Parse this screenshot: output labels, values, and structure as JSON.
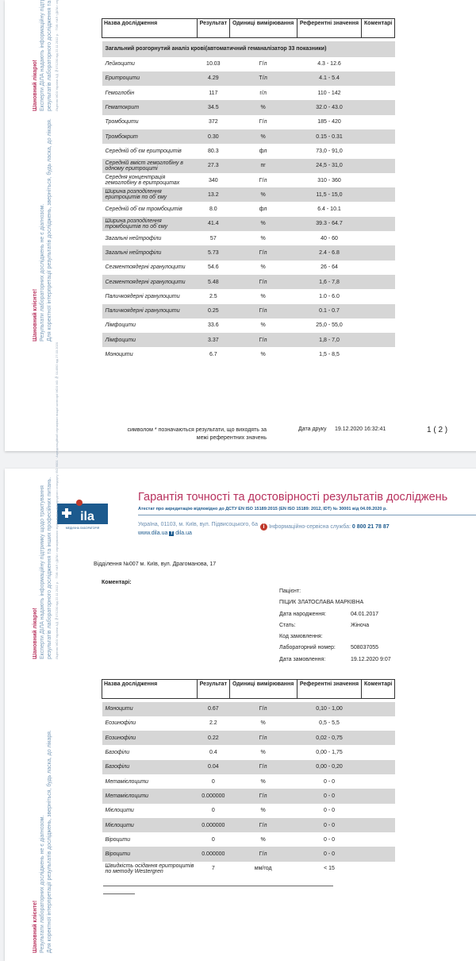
{
  "sidebar": {
    "patient_title": "Шановний клієнте!",
    "patient_l1": "Результати лабораторних досліджень не є діагнозом.",
    "patient_l2": "Для коректної інтерпретації результатів досліджень, зверніться, будь ласка, до лікаря.",
    "doctor_title": "Шановний лікарю!",
    "doctor_l1": "Експерти ДІЛА надають інформаційну підтримку щодо трактування",
    "doctor_l2": "результатів лабораторного дослідження та інших професійних питань.",
    "license": "Ліцензія МОЗ України АД №071230 від 22.11.2012 р. · ТОВ «МЛ «ДІЛА» сертифіковано згідно вимог міжнародного стандарту ISO 9001 · Акредитаційний сертифікат вищої категорії МОЗ МЗ № 014592 від 27.03.2020"
  },
  "table_headers": [
    "Назва дослідження",
    "Результат",
    "Одиниці вимірювання",
    "Референтні значення",
    "Коментарі"
  ],
  "page1": {
    "section": "Загальний розгорнутий аналіз крові(автоматичний геманалізатор 33 показники)",
    "rows": [
      [
        "Лейкоцити",
        "10.03",
        "Г/л",
        "4.3 - 12.6"
      ],
      [
        "Еритроцити",
        "4.29",
        "Т/л",
        "4.1 - 5.4"
      ],
      [
        "Гемоглобін",
        "117",
        "г/л",
        "110 - 142"
      ],
      [
        "Гематокрит",
        "34.5",
        "%",
        "32.0 - 43.0"
      ],
      [
        "Тромбоцити",
        "372",
        "Г/л",
        "185 - 420"
      ],
      [
        "Тромбокрит",
        "0.30",
        "%",
        "0.15 - 0.31"
      ],
      [
        "Середній об`єм еритроцитів",
        "80.3",
        "фл",
        "73,0 - 91,0"
      ],
      [
        "Середній вміст гемоглобіну в одному еритроциті",
        "27.3",
        "пг",
        "24,5 - 31,0"
      ],
      [
        "Середня концентрація гемоглобіну в еритроцитах",
        "340",
        "Г/л",
        "310 - 360"
      ],
      [
        "Ширина розподілення еритроцитів по об`єму",
        "13.2",
        "%",
        "11,5 - 15,0"
      ],
      [
        "Середній об`єм тромбоцитів",
        "8.0",
        "фл",
        "6.4 - 10.1"
      ],
      [
        "Ширина розподілення тромбоцитів по об`єму",
        "41.4",
        "%",
        "39.3 - 64.7"
      ],
      [
        "Загальні нейтрофіли",
        "57",
        "%",
        "40 - 60"
      ],
      [
        "Загальні нейтрофіли",
        "5.73",
        "Г/л",
        "2.4 - 6.8"
      ],
      [
        "Сегментоядерні гранулоцити",
        "54.6",
        "%",
        "26 - 64"
      ],
      [
        "Сегментоядерні гранулоцити",
        "5.48",
        "Г/л",
        "1,6 - 7,8"
      ],
      [
        "Паличкоядерні гранулоцити",
        "2.5",
        "%",
        "1.0 - 6.0"
      ],
      [
        "Паличкоядерні гранулоцити",
        "0.25",
        "Г/л",
        "0.1 - 0.7"
      ],
      [
        "Лімфоцити",
        "33.6",
        "%",
        "25,0 - 55,0"
      ],
      [
        "Лімфоцити",
        "3.37",
        "Г/л",
        "1,8 - 7,0"
      ],
      [
        "Моноцити",
        "6.7",
        "%",
        "1,5 - 8,5"
      ]
    ],
    "footnote_l1": "символом * позначаються результати, що виходять за",
    "footnote_l2": "межі референтних значень",
    "print_label": "Дата друку",
    "print_date": "19.12.2020 16:32:41",
    "page_num": "1 ( 2 )"
  },
  "page2": {
    "logo_text": "ДІЛА",
    "logo_sub": "МЕДИЧНА ЛАБОРАТОРІЯ",
    "title": "Гарантія точності та достовірності результатів досліджень",
    "attestation": "Атестат про акредитацію відповідно до ДСТУ EN ISO 15189:2015 (EN ISO 15189: 2012, IDT) № 30001 від 04.09.2020 р.",
    "address": "Україна, 01103, м. Київ, вул. Підвисоцького, 6а",
    "website": "www.dila.ua",
    "facebook": "dila.ua",
    "service_label": "Інформаційно-сервісна служба:",
    "service_phone": "0 800 21 78 87",
    "branch": "Відділення №007 м. Київ, вул. Драгоманова, 17",
    "comments_label": "Коментарі:",
    "patient": {
      "label": "Пацієнт:",
      "name": "ПІЦИК ЗЛАТОСЛАВА МАРКІВНА",
      "dob_label": "Дата народження:",
      "dob": "04.01.2017",
      "sex_label": "Стать:",
      "sex": "Жіноча",
      "order_code_label": "Код замовлення:",
      "lab_no_label": "Лабораторний номер:",
      "lab_no": "508037055",
      "order_date_label": "Дата замовлення:",
      "order_date": "19.12.2020 9:07"
    },
    "rows": [
      [
        "Моноцити",
        "0.67",
        "Г/л",
        "0,10 - 1,00"
      ],
      [
        "Еозинофіли",
        "2.2",
        "%",
        "0,5 - 5,5"
      ],
      [
        "Еозинофіли",
        "0.22",
        "Г/л",
        "0,02 - 0,75"
      ],
      [
        "Базофіли",
        "0.4",
        "%",
        "0,00 - 1,75"
      ],
      [
        "Базофіли",
        "0.04",
        "Г/л",
        "0,00 - 0,20"
      ],
      [
        "Метамієлоцити",
        "0",
        "%",
        "0 - 0"
      ],
      [
        "Метамієлоцити",
        "0.000000",
        "Г/л",
        "0 - 0"
      ],
      [
        "Мієлоцити",
        "0",
        "%",
        "0 - 0"
      ],
      [
        "Мієлоцити",
        "0.000000",
        "Г/л",
        "0 - 0"
      ],
      [
        "Віроцити",
        "0",
        "%",
        "0 - 0"
      ],
      [
        "Віроцити",
        "0.000000",
        "Г/л",
        "0 - 0"
      ],
      [
        "Швидкість осідання еритроцитів по методу Westergren",
        "7",
        "мм/год",
        "< 15"
      ]
    ]
  },
  "colors": {
    "brand_red": "#b8325e",
    "brand_blue": "#1c5a8e",
    "row_gray": "#d6d6d6"
  }
}
